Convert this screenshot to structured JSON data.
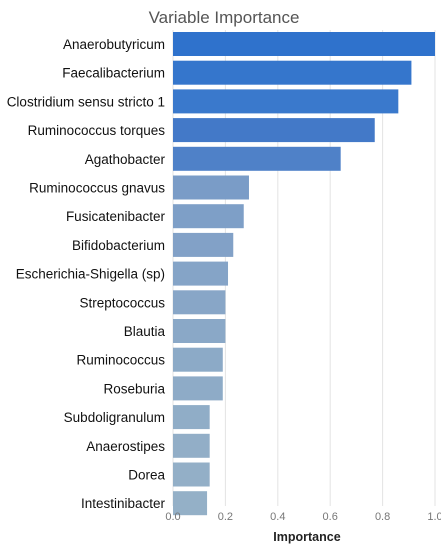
{
  "chart_data": {
    "type": "bar",
    "orientation": "horizontal",
    "title": "Variable Importance",
    "xlabel": "Importance",
    "ylabel": "",
    "xlim": [
      0,
      1.0
    ],
    "xticks": [
      0.0,
      0.2,
      0.4,
      0.6,
      0.8,
      1.0
    ],
    "xtick_labels": [
      "0.0",
      "0.2",
      "0.4",
      "0.6",
      "0.8",
      "1.0"
    ],
    "grid": true,
    "categories": [
      "Anaerobutyricum",
      "Faecalibacterium",
      "Clostridium sensu stricto 1",
      "Ruminococcus torques",
      "Agathobacter",
      "Ruminococcus gnavus",
      "Fusicatenibacter",
      "Bifidobacterium",
      "Escherichia-Shigella (sp)",
      "Streptococcus",
      "Blautia",
      "Ruminococcus",
      "Roseburia",
      "Subdoligranulum",
      "Anaerostipes",
      "Dorea",
      "Intestinibacter"
    ],
    "values": [
      1.0,
      0.91,
      0.86,
      0.77,
      0.64,
      0.29,
      0.27,
      0.23,
      0.21,
      0.2,
      0.2,
      0.19,
      0.19,
      0.14,
      0.14,
      0.14,
      0.13
    ],
    "bar_colors": [
      "#2f72cc",
      "#3576cc",
      "#3a79cc",
      "#4379c8",
      "#4f81c8",
      "#7a9cc7",
      "#7e9fc7",
      "#82a1c7",
      "#85a4c7",
      "#88a6c7",
      "#8aa8c7",
      "#8caac7",
      "#8eabc7",
      "#90adc7",
      "#92aec7",
      "#93afc7",
      "#94b0c7"
    ]
  }
}
